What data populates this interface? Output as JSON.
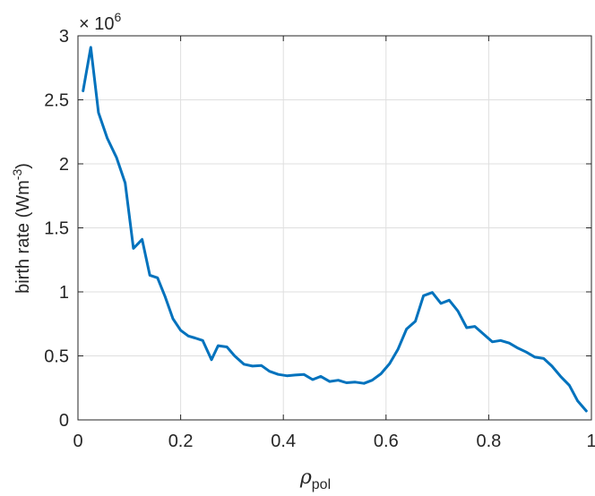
{
  "chart_data": {
    "type": "line",
    "title": "",
    "xlabel": "ρ",
    "xlabel_sub": "pol",
    "ylabel": "birth rate (Wm",
    "ylabel_sup": "-3",
    "ylabel_close": ")",
    "exponent_label": "× 10",
    "exponent_sup": "6",
    "xlim": [
      0,
      1
    ],
    "ylim": [
      0,
      3
    ],
    "xticks": [
      0,
      0.2,
      0.4,
      0.6,
      0.8,
      1
    ],
    "yticks": [
      0,
      0.5,
      1,
      1.5,
      2,
      2.5,
      3
    ],
    "xtick_labels": [
      "0",
      "0.2",
      "0.4",
      "0.6",
      "0.8",
      "1"
    ],
    "ytick_labels": [
      "0",
      "0.5",
      "1",
      "1.5",
      "2",
      "2.5",
      "3"
    ],
    "grid": true,
    "line_color": "#0072BD",
    "series": [
      {
        "x": [
          0.01,
          0.025,
          0.04,
          0.057,
          0.075,
          0.092,
          0.108,
          0.125,
          0.14,
          0.155,
          0.17,
          0.185,
          0.2,
          0.215,
          0.228,
          0.243,
          0.26,
          0.273,
          0.29,
          0.305,
          0.323,
          0.34,
          0.357,
          0.373,
          0.39,
          0.407,
          0.423,
          0.44,
          0.457,
          0.473,
          0.49,
          0.507,
          0.523,
          0.54,
          0.557,
          0.573,
          0.59,
          0.607,
          0.623,
          0.64,
          0.657,
          0.673,
          0.69,
          0.707,
          0.723,
          0.74,
          0.757,
          0.773,
          0.79,
          0.807,
          0.823,
          0.84,
          0.857,
          0.873,
          0.89,
          0.907,
          0.923,
          0.94,
          0.957,
          0.973,
          0.99
        ],
        "y": [
          2.57,
          2.91,
          2.4,
          2.2,
          2.05,
          1.85,
          1.34,
          1.41,
          1.13,
          1.11,
          0.96,
          0.79,
          0.7,
          0.655,
          0.64,
          0.62,
          0.47,
          0.58,
          0.57,
          0.5,
          0.435,
          0.42,
          0.425,
          0.38,
          0.355,
          0.345,
          0.35,
          0.355,
          0.315,
          0.34,
          0.3,
          0.31,
          0.29,
          0.295,
          0.285,
          0.31,
          0.36,
          0.44,
          0.55,
          0.71,
          0.77,
          0.97,
          0.995,
          0.91,
          0.935,
          0.85,
          0.72,
          0.73,
          0.67,
          0.61,
          0.62,
          0.6,
          0.56,
          0.53,
          0.49,
          0.48,
          0.42,
          0.34,
          0.27,
          0.15,
          0.07
        ]
      }
    ]
  }
}
